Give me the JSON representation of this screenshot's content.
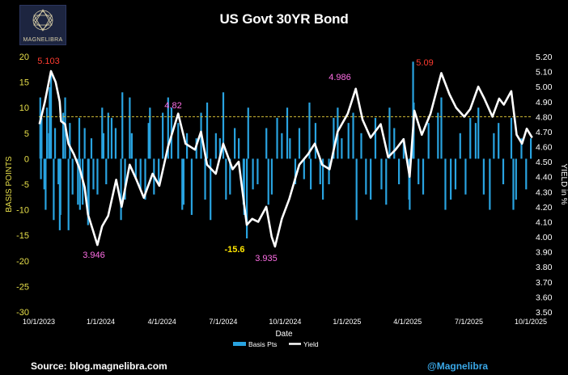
{
  "logo": {
    "text": "MAGNELIBRA",
    "accent": "#d9cfa8"
  },
  "source": "Source: blog.magnelibra.com",
  "handle": "@Magnelibra",
  "chart_data": {
    "type": "bar+line",
    "title": "US Govt 30YR Bond",
    "xlabel": "Date",
    "ylabel_left": "BASIS POINTS",
    "ylabel_right": "YIELD in %",
    "ylim_left": [
      -30,
      20
    ],
    "ylim_right": [
      3.5,
      5.2
    ],
    "yticks_left": [
      20,
      15,
      10,
      5,
      0,
      -5,
      -10,
      -15,
      -20,
      -25,
      -30
    ],
    "yticks_right": [
      5.2,
      5.1,
      5.0,
      4.9,
      4.8,
      4.7,
      4.6,
      4.5,
      4.4,
      4.3,
      4.2,
      4.1,
      4.0,
      3.9,
      3.8,
      3.7,
      3.6,
      3.5
    ],
    "x_ticks": [
      "10/1/2023",
      "1/1/2024",
      "4/1/2024",
      "7/1/2024",
      "10/1/2024",
      "1/1/2025",
      "4/1/2025",
      "7/1/2025",
      "10/1/2025"
    ],
    "reference_line": {
      "value": 4.8,
      "axis": "right",
      "style": "dashed",
      "color": "#d8c23a"
    },
    "legend": [
      "Basis Pts",
      "Yield"
    ],
    "colors": {
      "bars": "#29a3e0",
      "yield": "#ffffff",
      "axis_left": "#e8e04a",
      "high": "#ff3b30",
      "local": "#ff6ee6",
      "low_bp": "#ffe600"
    },
    "annotations": [
      {
        "text": "5.103",
        "date": "2023-10-20",
        "color": "high"
      },
      {
        "text": "3.946",
        "date": "2023-12-28",
        "color": "local"
      },
      {
        "text": "4.82",
        "date": "2024-04-25",
        "color": "local"
      },
      {
        "text": "-15.6",
        "date": "2024-08-05",
        "color": "low_bp"
      },
      {
        "text": "3.935",
        "date": "2024-09-16",
        "color": "local"
      },
      {
        "text": "4.986",
        "date": "2025-01-14",
        "color": "local"
      },
      {
        "text": "5.09",
        "date": "2025-05-21",
        "color": "high"
      }
    ],
    "yield_series": [
      {
        "date": "2023-10-02",
        "value": 4.75
      },
      {
        "date": "2023-10-10",
        "value": 4.9
      },
      {
        "date": "2023-10-19",
        "value": 5.103
      },
      {
        "date": "2023-10-26",
        "value": 5.03
      },
      {
        "date": "2023-11-01",
        "value": 4.9
      },
      {
        "date": "2023-11-03",
        "value": 4.77
      },
      {
        "date": "2023-11-09",
        "value": 4.75
      },
      {
        "date": "2023-11-14",
        "value": 4.62
      },
      {
        "date": "2023-11-22",
        "value": 4.55
      },
      {
        "date": "2023-12-01",
        "value": 4.45
      },
      {
        "date": "2023-12-08",
        "value": 4.33
      },
      {
        "date": "2023-12-13",
        "value": 4.15
      },
      {
        "date": "2023-12-20",
        "value": 4.05
      },
      {
        "date": "2023-12-27",
        "value": 3.946
      },
      {
        "date": "2024-01-03",
        "value": 4.07
      },
      {
        "date": "2024-01-12",
        "value": 4.14
      },
      {
        "date": "2024-01-24",
        "value": 4.38
      },
      {
        "date": "2024-02-01",
        "value": 4.2
      },
      {
        "date": "2024-02-13",
        "value": 4.48
      },
      {
        "date": "2024-02-23",
        "value": 4.38
      },
      {
        "date": "2024-03-05",
        "value": 4.26
      },
      {
        "date": "2024-03-18",
        "value": 4.42
      },
      {
        "date": "2024-03-28",
        "value": 4.34
      },
      {
        "date": "2024-04-10",
        "value": 4.6
      },
      {
        "date": "2024-04-25",
        "value": 4.82
      },
      {
        "date": "2024-05-06",
        "value": 4.62
      },
      {
        "date": "2024-05-20",
        "value": 4.58
      },
      {
        "date": "2024-05-29",
        "value": 4.7
      },
      {
        "date": "2024-06-07",
        "value": 4.48
      },
      {
        "date": "2024-06-20",
        "value": 4.42
      },
      {
        "date": "2024-07-01",
        "value": 4.62
      },
      {
        "date": "2024-07-15",
        "value": 4.45
      },
      {
        "date": "2024-07-24",
        "value": 4.5
      },
      {
        "date": "2024-08-05",
        "value": 4.08
      },
      {
        "date": "2024-08-13",
        "value": 4.12
      },
      {
        "date": "2024-08-22",
        "value": 4.1
      },
      {
        "date": "2024-09-03",
        "value": 4.2
      },
      {
        "date": "2024-09-11",
        "value": 4.0
      },
      {
        "date": "2024-09-16",
        "value": 3.935
      },
      {
        "date": "2024-09-26",
        "value": 4.12
      },
      {
        "date": "2024-10-07",
        "value": 4.25
      },
      {
        "date": "2024-10-22",
        "value": 4.48
      },
      {
        "date": "2024-11-04",
        "value": 4.55
      },
      {
        "date": "2024-11-14",
        "value": 4.62
      },
      {
        "date": "2024-11-25",
        "value": 4.48
      },
      {
        "date": "2024-12-06",
        "value": 4.45
      },
      {
        "date": "2024-12-18",
        "value": 4.7
      },
      {
        "date": "2025-01-02",
        "value": 4.82
      },
      {
        "date": "2025-01-14",
        "value": 4.986
      },
      {
        "date": "2025-01-24",
        "value": 4.78
      },
      {
        "date": "2025-02-05",
        "value": 4.66
      },
      {
        "date": "2025-02-20",
        "value": 4.75
      },
      {
        "date": "2025-03-03",
        "value": 4.53
      },
      {
        "date": "2025-03-14",
        "value": 4.58
      },
      {
        "date": "2025-03-26",
        "value": 4.65
      },
      {
        "date": "2025-04-04",
        "value": 4.4
      },
      {
        "date": "2025-04-11",
        "value": 4.84
      },
      {
        "date": "2025-04-22",
        "value": 4.68
      },
      {
        "date": "2025-05-05",
        "value": 4.82
      },
      {
        "date": "2025-05-21",
        "value": 5.09
      },
      {
        "date": "2025-06-02",
        "value": 4.95
      },
      {
        "date": "2025-06-12",
        "value": 4.86
      },
      {
        "date": "2025-06-24",
        "value": 4.8
      },
      {
        "date": "2025-07-03",
        "value": 4.85
      },
      {
        "date": "2025-07-15",
        "value": 5.0
      },
      {
        "date": "2025-07-24",
        "value": 4.92
      },
      {
        "date": "2025-08-05",
        "value": 4.8
      },
      {
        "date": "2025-08-15",
        "value": 4.92
      },
      {
        "date": "2025-08-22",
        "value": 4.88
      },
      {
        "date": "2025-09-02",
        "value": 4.97
      },
      {
        "date": "2025-09-10",
        "value": 4.68
      },
      {
        "date": "2025-09-18",
        "value": 4.62
      },
      {
        "date": "2025-09-25",
        "value": 4.72
      },
      {
        "date": "2025-10-03",
        "value": 4.66
      }
    ],
    "bars_summary": "Daily changes in basis points, mostly between -15 and +15; notable extremes near +17 (Oct 2023), about +19 (Apr 2025), -15.6 (Aug 2024)",
    "bar_series": [
      {
        "date": "2023-10-03",
        "value": 12
      },
      {
        "date": "2023-10-04",
        "value": -4
      },
      {
        "date": "2023-10-05",
        "value": 8
      },
      {
        "date": "2023-10-09",
        "value": -6
      },
      {
        "date": "2023-10-11",
        "value": -10
      },
      {
        "date": "2023-10-13",
        "value": 10
      },
      {
        "date": "2023-10-16",
        "value": 5
      },
      {
        "date": "2023-10-17",
        "value": 14
      },
      {
        "date": "2023-10-19",
        "value": 17
      },
      {
        "date": "2023-10-23",
        "value": -12
      },
      {
        "date": "2023-10-25",
        "value": 6
      },
      {
        "date": "2023-10-30",
        "value": -5
      },
      {
        "date": "2023-11-01",
        "value": -14
      },
      {
        "date": "2023-11-02",
        "value": -11
      },
      {
        "date": "2023-11-06",
        "value": 9
      },
      {
        "date": "2023-11-09",
        "value": 12
      },
      {
        "date": "2023-11-14",
        "value": -14
      },
      {
        "date": "2023-11-16",
        "value": 7
      },
      {
        "date": "2023-11-20",
        "value": -7
      },
      {
        "date": "2023-11-28",
        "value": -9
      },
      {
        "date": "2023-11-30",
        "value": 8
      },
      {
        "date": "2023-12-01",
        "value": -10
      },
      {
        "date": "2023-12-05",
        "value": -9
      },
      {
        "date": "2023-12-08",
        "value": 6
      },
      {
        "date": "2023-12-13",
        "value": -13
      },
      {
        "date": "2023-12-14",
        "value": -11
      },
      {
        "date": "2023-12-18",
        "value": 4
      },
      {
        "date": "2023-12-21",
        "value": -6
      },
      {
        "date": "2023-12-27",
        "value": -7
      },
      {
        "date": "2024-01-03",
        "value": 10
      },
      {
        "date": "2024-01-05",
        "value": 5
      },
      {
        "date": "2024-01-09",
        "value": -5
      },
      {
        "date": "2024-01-12",
        "value": 9
      },
      {
        "date": "2024-01-17",
        "value": 8
      },
      {
        "date": "2024-01-23",
        "value": 6
      },
      {
        "date": "2024-01-31",
        "value": -12
      },
      {
        "date": "2024-02-02",
        "value": 13
      },
      {
        "date": "2024-02-06",
        "value": -8
      },
      {
        "date": "2024-02-13",
        "value": 12
      },
      {
        "date": "2024-02-16",
        "value": 5
      },
      {
        "date": "2024-02-22",
        "value": -4
      },
      {
        "date": "2024-02-29",
        "value": -6
      },
      {
        "date": "2024-03-07",
        "value": -8
      },
      {
        "date": "2024-03-12",
        "value": 7
      },
      {
        "date": "2024-03-14",
        "value": 10
      },
      {
        "date": "2024-03-20",
        "value": -7
      },
      {
        "date": "2024-03-27",
        "value": -5
      },
      {
        "date": "2024-04-02",
        "value": 9
      },
      {
        "date": "2024-04-10",
        "value": 12
      },
      {
        "date": "2024-04-15",
        "value": 10
      },
      {
        "date": "2024-04-25",
        "value": 7
      },
      {
        "date": "2024-05-01",
        "value": -10
      },
      {
        "date": "2024-05-03",
        "value": -9
      },
      {
        "date": "2024-05-08",
        "value": 5
      },
      {
        "date": "2024-05-15",
        "value": -11
      },
      {
        "date": "2024-05-22",
        "value": 4
      },
      {
        "date": "2024-05-29",
        "value": 9
      },
      {
        "date": "2024-06-04",
        "value": -8
      },
      {
        "date": "2024-06-07",
        "value": 11
      },
      {
        "date": "2024-06-12",
        "value": -12
      },
      {
        "date": "2024-06-20",
        "value": 5
      },
      {
        "date": "2024-06-26",
        "value": 4
      },
      {
        "date": "2024-07-01",
        "value": 13
      },
      {
        "date": "2024-07-05",
        "value": -8
      },
      {
        "date": "2024-07-11",
        "value": -7
      },
      {
        "date": "2024-07-18",
        "value": 6
      },
      {
        "date": "2024-07-24",
        "value": 4
      },
      {
        "date": "2024-07-31",
        "value": -9
      },
      {
        "date": "2024-08-01",
        "value": -11
      },
      {
        "date": "2024-08-05",
        "value": -15.6
      },
      {
        "date": "2024-08-07",
        "value": 10
      },
      {
        "date": "2024-08-14",
        "value": -6
      },
      {
        "date": "2024-08-21",
        "value": -5
      },
      {
        "date": "2024-09-03",
        "value": 6
      },
      {
        "date": "2024-09-06",
        "value": -9
      },
      {
        "date": "2024-09-11",
        "value": -7
      },
      {
        "date": "2024-09-19",
        "value": 8
      },
      {
        "date": "2024-09-26",
        "value": 5
      },
      {
        "date": "2024-10-04",
        "value": 10
      },
      {
        "date": "2024-10-08",
        "value": 4
      },
      {
        "date": "2024-10-16",
        "value": -5
      },
      {
        "date": "2024-10-22",
        "value": 6
      },
      {
        "date": "2024-10-29",
        "value": -4
      },
      {
        "date": "2024-11-06",
        "value": 11
      },
      {
        "date": "2024-11-08",
        "value": -6
      },
      {
        "date": "2024-11-15",
        "value": 7
      },
      {
        "date": "2024-11-22",
        "value": -5
      },
      {
        "date": "2024-11-26",
        "value": -8
      },
      {
        "date": "2024-12-05",
        "value": -5
      },
      {
        "date": "2024-12-12",
        "value": 8
      },
      {
        "date": "2024-12-18",
        "value": 10
      },
      {
        "date": "2024-12-24",
        "value": 4
      },
      {
        "date": "2025-01-03",
        "value": 7
      },
      {
        "date": "2025-01-10",
        "value": 9
      },
      {
        "date": "2025-01-15",
        "value": -12
      },
      {
        "date": "2025-01-22",
        "value": 5
      },
      {
        "date": "2025-01-29",
        "value": -7
      },
      {
        "date": "2025-02-05",
        "value": -8
      },
      {
        "date": "2025-02-12",
        "value": 8
      },
      {
        "date": "2025-02-21",
        "value": -6
      },
      {
        "date": "2025-02-28",
        "value": -9
      },
      {
        "date": "2025-03-05",
        "value": 10
      },
      {
        "date": "2025-03-12",
        "value": 6
      },
      {
        "date": "2025-03-19",
        "value": -5
      },
      {
        "date": "2025-03-26",
        "value": 4
      },
      {
        "date": "2025-04-03",
        "value": -8
      },
      {
        "date": "2025-04-04",
        "value": -10
      },
      {
        "date": "2025-04-09",
        "value": 19
      },
      {
        "date": "2025-04-10",
        "value": 11
      },
      {
        "date": "2025-04-17",
        "value": -5
      },
      {
        "date": "2025-04-24",
        "value": -7
      },
      {
        "date": "2025-05-02",
        "value": 7
      },
      {
        "date": "2025-05-16",
        "value": 9
      },
      {
        "date": "2025-05-21",
        "value": 12
      },
      {
        "date": "2025-05-27",
        "value": -10
      },
      {
        "date": "2025-06-04",
        "value": -8
      },
      {
        "date": "2025-06-11",
        "value": -6
      },
      {
        "date": "2025-06-18",
        "value": 5
      },
      {
        "date": "2025-06-26",
        "value": -7
      },
      {
        "date": "2025-07-03",
        "value": 8
      },
      {
        "date": "2025-07-11",
        "value": 7
      },
      {
        "date": "2025-07-15",
        "value": 10
      },
      {
        "date": "2025-07-23",
        "value": -7
      },
      {
        "date": "2025-08-01",
        "value": -10
      },
      {
        "date": "2025-08-07",
        "value": 5
      },
      {
        "date": "2025-08-14",
        "value": 7
      },
      {
        "date": "2025-08-21",
        "value": -5
      },
      {
        "date": "2025-09-02",
        "value": 8
      },
      {
        "date": "2025-09-05",
        "value": -10
      },
      {
        "date": "2025-09-09",
        "value": -8
      },
      {
        "date": "2025-09-17",
        "value": 4
      },
      {
        "date": "2025-09-24",
        "value": -6
      },
      {
        "date": "2025-10-01",
        "value": 4
      }
    ]
  }
}
